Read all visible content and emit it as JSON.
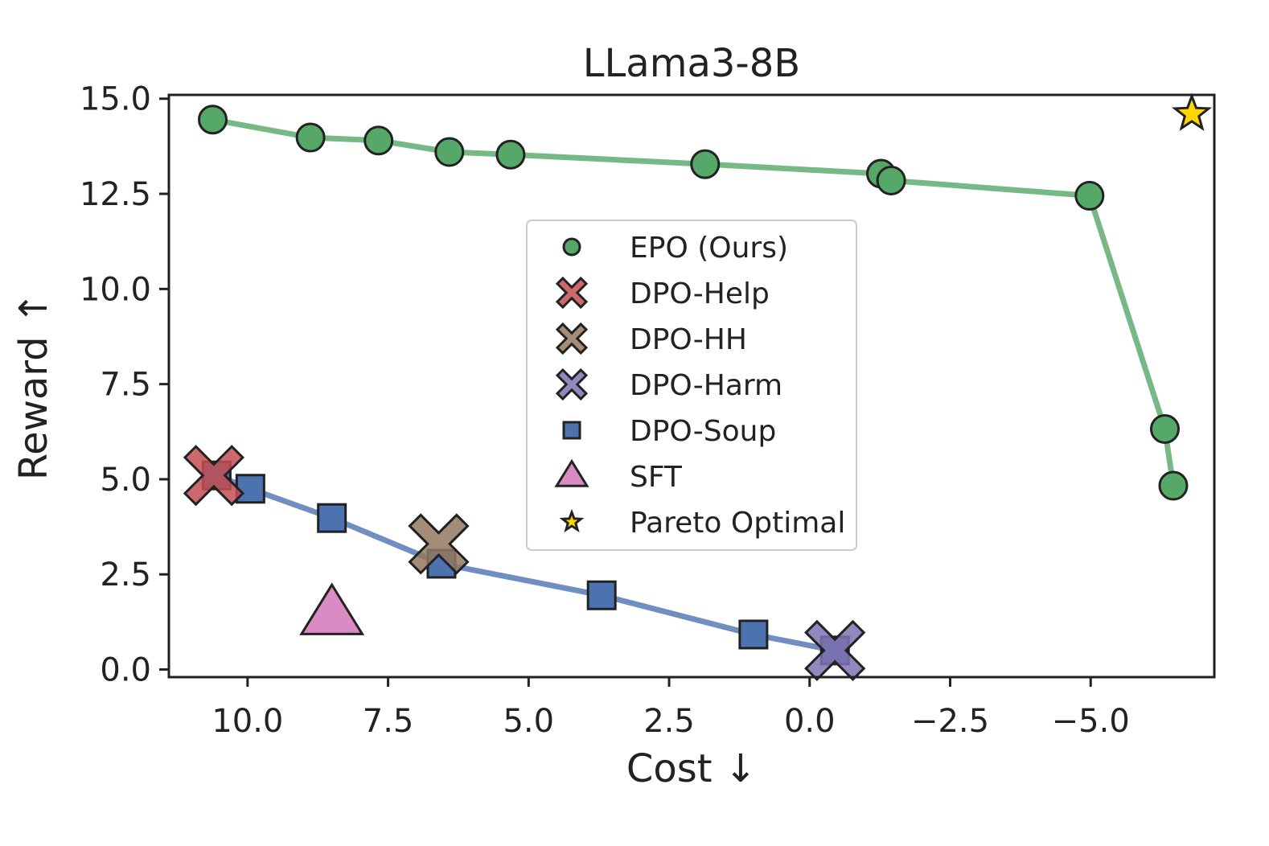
{
  "chart_data": {
    "type": "scatter",
    "title": "LLama3-8B",
    "xlabel": "Cost ↓",
    "ylabel": "Reward ↑",
    "xlim": [
      11.4,
      -7.2
    ],
    "ylim": [
      -0.2,
      15.1
    ],
    "xticks": [
      10.0,
      7.5,
      5.0,
      2.5,
      0.0,
      -2.5,
      -5.0
    ],
    "xtick_labels": [
      "10.0",
      "7.5",
      "5.0",
      "2.5",
      "0.0",
      "−2.5",
      "−5.0"
    ],
    "yticks": [
      0.0,
      2.5,
      5.0,
      7.5,
      10.0,
      12.5,
      15.0
    ],
    "ytick_labels": [
      "0.0",
      "2.5",
      "5.0",
      "7.5",
      "10.0",
      "12.5",
      "15.0"
    ],
    "grid": false,
    "legend_position": "center",
    "series": [
      {
        "name": "EPO (Ours)",
        "marker": "circle",
        "color": "#55a868",
        "line": true,
        "x": [
          10.62,
          8.88,
          7.67,
          6.41,
          5.32,
          1.86,
          -1.27,
          -1.45,
          -4.98,
          -6.32,
          -6.47
        ],
        "y": [
          14.45,
          13.98,
          13.9,
          13.6,
          13.53,
          13.28,
          13.03,
          12.85,
          12.45,
          6.32,
          4.83
        ]
      },
      {
        "name": "DPO-Help",
        "marker": "x",
        "color": "#c44e52",
        "line": false,
        "x": [
          10.6
        ],
        "y": [
          5.1
        ]
      },
      {
        "name": "DPO-HH",
        "marker": "x",
        "color": "#937860",
        "line": false,
        "x": [
          6.6
        ],
        "y": [
          3.3
        ]
      },
      {
        "name": "DPO-Harm",
        "marker": "x",
        "color": "#8172b3",
        "line": false,
        "x": [
          -0.45
        ],
        "y": [
          0.5
        ]
      },
      {
        "name": "DPO-Soup",
        "marker": "square",
        "color": "#4c72b0",
        "line": true,
        "x": [
          10.55,
          9.95,
          8.5,
          6.55,
          3.7,
          1.0,
          -0.45
        ],
        "y": [
          5.1,
          4.75,
          3.98,
          2.78,
          1.95,
          0.92,
          0.5
        ]
      },
      {
        "name": "SFT",
        "marker": "triangle",
        "color": "#da8bc3",
        "line": false,
        "x": [
          8.5
        ],
        "y": [
          1.45
        ]
      },
      {
        "name": "Pareto Optimal",
        "marker": "star",
        "color": "#ffd700",
        "line": false,
        "x": [
          -6.8
        ],
        "y": [
          14.6
        ]
      }
    ]
  }
}
